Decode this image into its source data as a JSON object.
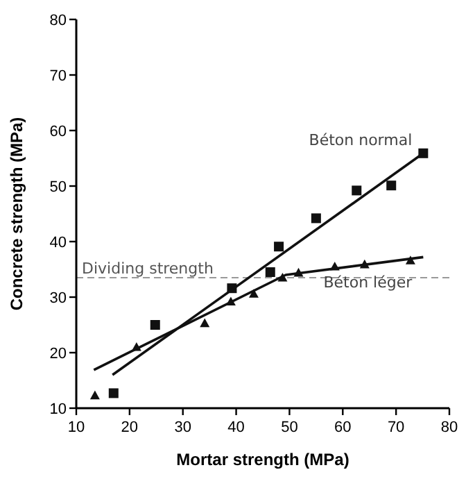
{
  "chart_data": {
    "type": "scatter",
    "xlabel": "Mortar strength (MPa)",
    "ylabel": "Concrete strength (MPa)",
    "xlim": [
      10,
      80
    ],
    "ylim": [
      10,
      80
    ],
    "xticks": [
      10,
      20,
      30,
      40,
      50,
      60,
      70,
      80
    ],
    "yticks": [
      10,
      20,
      30,
      40,
      50,
      60,
      70,
      80
    ],
    "grid": false,
    "series": [
      {
        "marker": "square",
        "color": "#111111",
        "x": [
          17.0,
          24.8,
          39.2,
          46.4,
          48.0,
          55.0,
          62.6,
          69.1,
          75.1
        ],
        "values": [
          12.7,
          25.0,
          31.6,
          34.5,
          39.1,
          44.2,
          49.2,
          50.1,
          55.9
        ]
      },
      {
        "marker": "triangle",
        "color": "#111111",
        "x": [
          13.5,
          21.3,
          34.1,
          39.0,
          43.3,
          48.7,
          51.7,
          58.5,
          64.1,
          72.7
        ],
        "values": [
          12.3,
          21.0,
          25.3,
          29.2,
          30.6,
          33.5,
          34.4,
          35.5,
          35.9,
          36.6
        ]
      },
      {
        "type": "line",
        "name": "Béton normal",
        "color": "#111111",
        "marker": "none",
        "x": [
          16.8,
          75.1
        ],
        "values": [
          16.0,
          55.9
        ]
      },
      {
        "type": "line",
        "name": "Béton léger",
        "color": "#111111",
        "marker": "none",
        "x": [
          13.3,
          49.3,
          75.1
        ],
        "values": [
          16.9,
          34.0,
          37.2
        ]
      }
    ],
    "ref_lines": [
      {
        "axis": "y",
        "value": 33.5,
        "label": "Dividing strength",
        "color": "#999999",
        "line_style": "dashed"
      }
    ]
  }
}
